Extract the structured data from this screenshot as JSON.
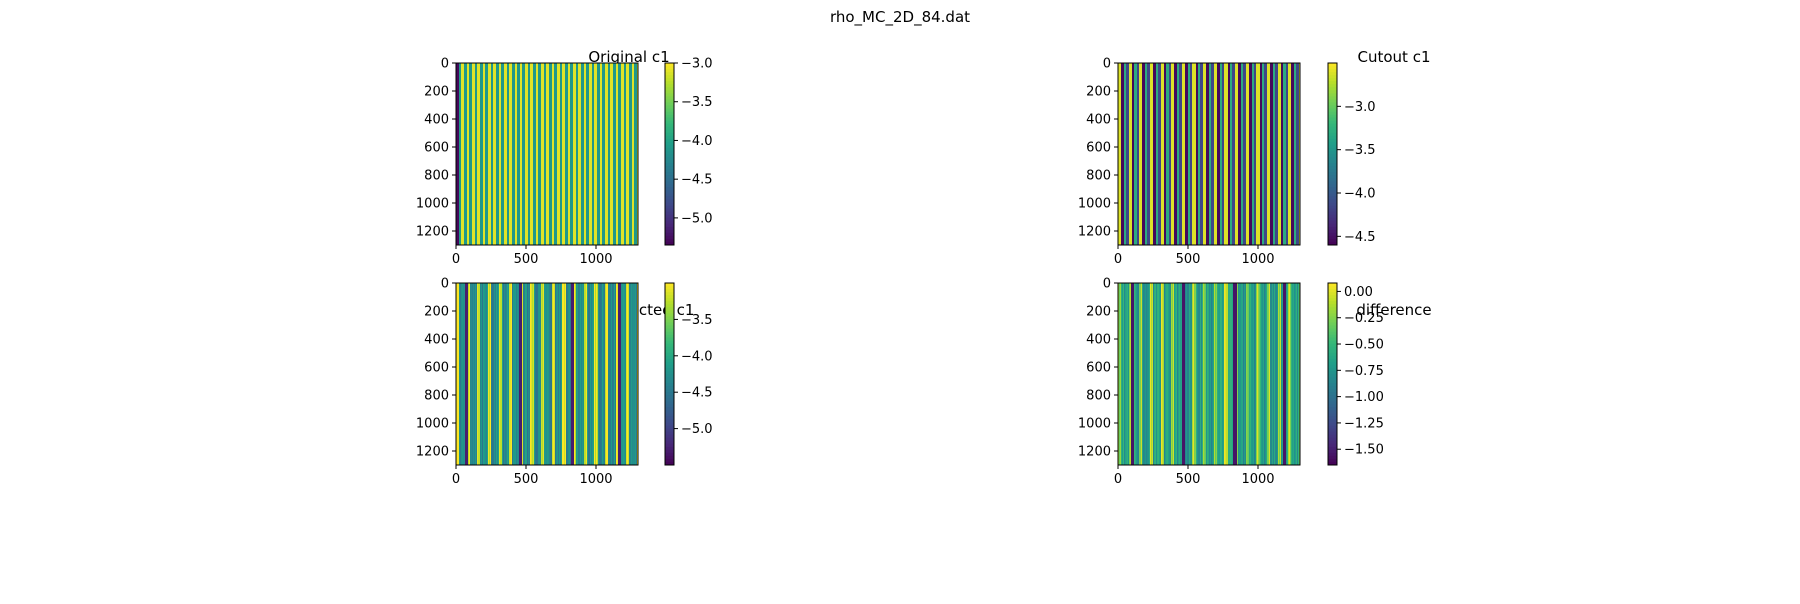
{
  "figure": {
    "suptitle": "rho_MC_2D_84.dat"
  },
  "colormap": [
    "#440154",
    "#482878",
    "#3e4989",
    "#31688e",
    "#26828e",
    "#1f9e89",
    "#35b779",
    "#6ece58",
    "#b5de2b",
    "#fde725"
  ],
  "chart_data": [
    {
      "type": "heatmap",
      "title": "Original c1",
      "x_ticks": [
        0,
        500,
        1000
      ],
      "y_ticks": [
        0,
        200,
        400,
        600,
        800,
        1000,
        1200
      ],
      "xlim": [
        0,
        1300
      ],
      "ylim": [
        1300,
        0
      ],
      "colorbar": {
        "range": [
          -5.35,
          -3.0
        ],
        "ticks": [
          -3.0,
          -3.5,
          -4.0,
          -4.5,
          -5.0
        ],
        "tick_labels": [
          "−3.0",
          "−3.5",
          "−4.0",
          "−4.5",
          "−5.0"
        ]
      },
      "stripes": {
        "period": 38,
        "phase": 0,
        "high": -3.1,
        "low": -4.1,
        "high_fraction": 0.5,
        "noise": 0.0,
        "dark_columns": [
          10
        ],
        "dark_value": -5.3
      }
    },
    {
      "type": "heatmap",
      "title": "Cutout c1",
      "x_ticks": [
        0,
        500,
        1000
      ],
      "y_ticks": [
        0,
        200,
        400,
        600,
        800,
        1000,
        1200
      ],
      "xlim": [
        0,
        1300
      ],
      "ylim": [
        1300,
        0
      ],
      "colorbar": {
        "range": [
          -4.6,
          -2.5
        ],
        "ticks": [
          -3.0,
          -3.5,
          -4.0,
          -4.5
        ],
        "tick_labels": [
          "−3.0",
          "−3.5",
          "−4.0",
          "−4.5"
        ]
      },
      "stripes": {
        "period": 76,
        "phase": 0,
        "high": -2.6,
        "low": -4.55,
        "high_fraction": 0.3,
        "noise": 0.0,
        "mid_value": -3.3
      }
    },
    {
      "type": "heatmap",
      "title": "Reconstructed c1",
      "x_ticks": [
        0,
        500,
        1000
      ],
      "y_ticks": [
        0,
        200,
        400,
        600,
        800,
        1000,
        1200
      ],
      "xlim": [
        0,
        1300
      ],
      "ylim": [
        1300,
        0
      ],
      "colorbar": {
        "range": [
          -5.5,
          -3.0
        ],
        "ticks": [
          -3.5,
          -4.0,
          -4.5,
          -5.0
        ],
        "tick_labels": [
          "−3.5",
          "−4.0",
          "−4.5",
          "−5.0"
        ]
      },
      "stripes": {
        "period": 76,
        "phase": 0,
        "high": -3.05,
        "low": -4.3,
        "high_fraction": 0.3,
        "noise": 0.25,
        "dark_columns": [
          75,
          460,
          830,
          1170
        ],
        "dark_value": -5.3
      }
    },
    {
      "type": "heatmap",
      "title": "difference",
      "x_ticks": [
        0,
        500,
        1000
      ],
      "y_ticks": [
        0,
        200,
        400,
        600,
        800,
        1000,
        1200
      ],
      "xlim": [
        0,
        1300
      ],
      "ylim": [
        1300,
        0
      ],
      "colorbar": {
        "range": [
          -1.65,
          0.08
        ],
        "ticks": [
          0.0,
          -0.25,
          -0.5,
          -0.75,
          -1.0,
          -1.25,
          -1.5
        ],
        "tick_labels": [
          "0.00",
          "−0.25",
          "−0.50",
          "−0.75",
          "−1.00",
          "−1.25",
          "−1.50"
        ]
      },
      "stripes": {
        "period": 76,
        "phase": 0,
        "high": -0.15,
        "low": -0.7,
        "high_fraction": 0.3,
        "noise": 0.2,
        "dark_columns": [
          105,
          470,
          835,
          1190
        ],
        "dark_value": -1.55
      }
    }
  ]
}
